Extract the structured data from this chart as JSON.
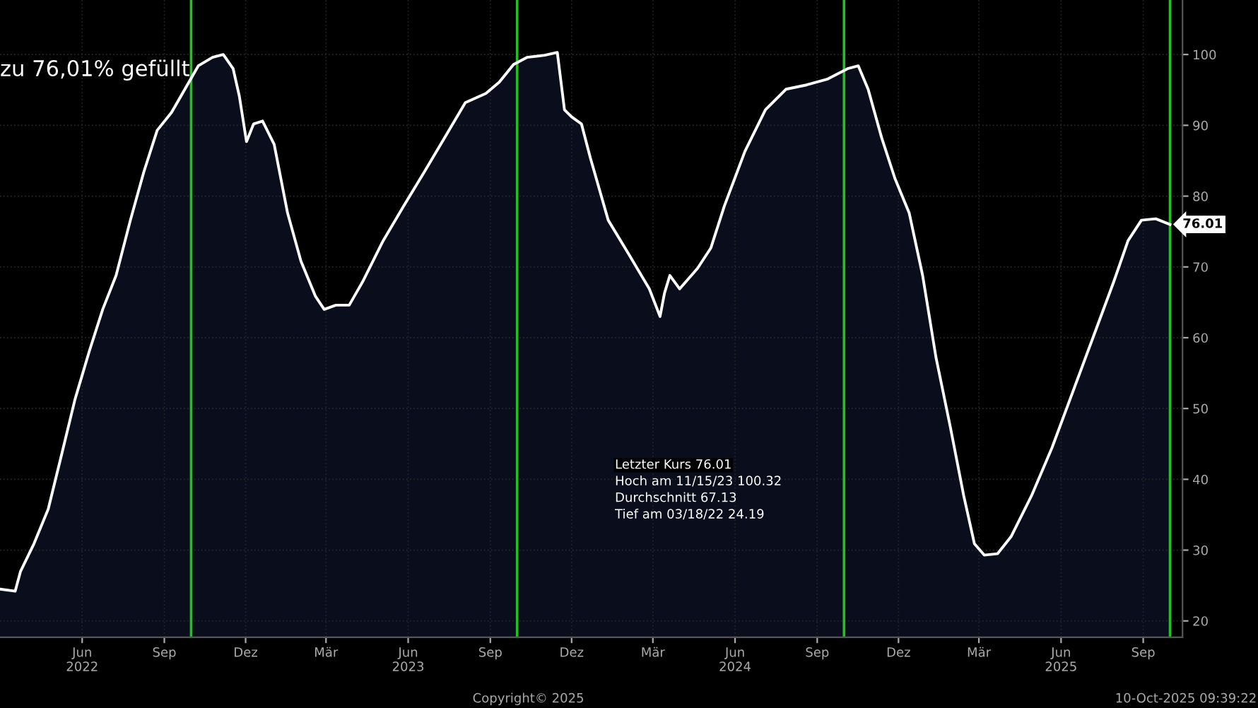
{
  "chart_data": {
    "type": "area",
    "title": "zu 76,01% gefüllt",
    "x": [
      "2022-03-01",
      "2022-03-18",
      "2022-03-24",
      "2022-04-08",
      "2022-04-24",
      "2022-05-09",
      "2022-05-24",
      "2022-06-09",
      "2022-06-24",
      "2022-07-09",
      "2022-07-25",
      "2022-08-09",
      "2022-08-24",
      "2022-09-09",
      "2022-09-24",
      "2022-10-09",
      "2022-10-25",
      "2022-11-06",
      "2022-11-17",
      "2022-11-24",
      "2022-12-02",
      "2022-12-10",
      "2022-12-20",
      "2023-01-02",
      "2023-01-17",
      "2023-02-01",
      "2023-02-17",
      "2023-02-27",
      "2023-03-12",
      "2023-03-27",
      "2023-04-11",
      "2023-05-04",
      "2023-05-27",
      "2023-06-19",
      "2023-07-12",
      "2023-08-04",
      "2023-08-27",
      "2023-09-11",
      "2023-09-27",
      "2023-10-12",
      "2023-11-01",
      "2023-11-15",
      "2023-11-23",
      "2023-12-01",
      "2023-12-12",
      "2023-12-22",
      "2024-01-11",
      "2024-02-03",
      "2024-02-26",
      "2024-03-09",
      "2024-03-14",
      "2024-03-20",
      "2024-03-31",
      "2024-04-20",
      "2024-05-05",
      "2024-05-20",
      "2024-06-12",
      "2024-07-05",
      "2024-07-28",
      "2024-08-20",
      "2024-09-12",
      "2024-10-05",
      "2024-10-17",
      "2024-10-28",
      "2024-11-12",
      "2024-11-27",
      "2024-12-13",
      "2024-12-28",
      "2025-01-12",
      "2025-01-28",
      "2025-02-12",
      "2025-02-24",
      "2025-03-07",
      "2025-03-22",
      "2025-04-06",
      "2025-04-29",
      "2025-05-22",
      "2025-06-14",
      "2025-07-07",
      "2025-07-30",
      "2025-08-15",
      "2025-08-30",
      "2025-09-15",
      "2025-10-01"
    ],
    "series": [
      {
        "color": "#ffffff",
        "values": [
          24.5,
          24.2,
          27.0,
          30.9,
          35.8,
          43.5,
          51.3,
          58.1,
          64.0,
          68.8,
          76.6,
          83.4,
          89.3,
          91.8,
          95.1,
          98.4,
          99.6,
          100.0,
          98.0,
          94.1,
          87.7,
          90.2,
          90.6,
          87.3,
          77.6,
          70.8,
          65.9,
          64.0,
          64.6,
          64.6,
          67.9,
          73.7,
          78.6,
          83.4,
          88.3,
          93.2,
          94.5,
          96.1,
          98.6,
          99.6,
          99.9,
          100.3,
          92.2,
          91.2,
          90.2,
          85.4,
          76.6,
          71.8,
          66.9,
          63.0,
          66.3,
          68.8,
          66.9,
          69.8,
          72.7,
          78.6,
          86.3,
          92.2,
          95.1,
          95.7,
          96.5,
          98.0,
          98.4,
          95.1,
          88.3,
          82.5,
          77.6,
          68.8,
          57.2,
          47.4,
          37.7,
          30.9,
          29.3,
          29.5,
          31.9,
          37.7,
          44.5,
          52.3,
          60.1,
          67.9,
          73.7,
          76.6,
          76.8,
          76.0
        ]
      }
    ],
    "xlim": [
      "2022-03-01",
      "2025-10-15"
    ],
    "xticks": [
      {
        "value": "2022-06-01",
        "label": "Jun\n2022"
      },
      {
        "value": "2022-09-01",
        "label": "Sep"
      },
      {
        "value": "2022-12-01",
        "label": "Dez"
      },
      {
        "value": "2023-03-01",
        "label": "Mär"
      },
      {
        "value": "2023-06-01",
        "label": "Jun\n2023"
      },
      {
        "value": "2023-09-01",
        "label": "Sep"
      },
      {
        "value": "2023-12-01",
        "label": "Dez"
      },
      {
        "value": "2024-03-01",
        "label": "Mär"
      },
      {
        "value": "2024-06-01",
        "label": "Jun\n2024"
      },
      {
        "value": "2024-09-01",
        "label": "Sep"
      },
      {
        "value": "2024-12-01",
        "label": "Dez"
      },
      {
        "value": "2025-03-01",
        "label": "Mär"
      },
      {
        "value": "2025-06-01",
        "label": "Jun\n2025"
      },
      {
        "value": "2025-09-01",
        "label": "Sep"
      }
    ],
    "ylim": [
      17.7,
      107.7
    ],
    "yticks": [
      20,
      30,
      40,
      50,
      60,
      70,
      80,
      90,
      100
    ],
    "grid": true,
    "ref_lines": [
      {
        "axis": "x",
        "value": "2022-10-01",
        "color": "#22c022"
      },
      {
        "axis": "x",
        "value": "2023-10-01",
        "color": "#22c022"
      },
      {
        "axis": "x",
        "value": "2024-10-01",
        "color": "#22c022"
      },
      {
        "axis": "x",
        "value": "2025-10-01",
        "color": "#22c022"
      }
    ],
    "annotations": [
      "Letzter Kurs 76.01",
      "Hoch am 11/15/23 100.32",
      "Durchschnitt 67.13",
      "Tief am 03/18/22 24.19",
      {
        "text": "76.01",
        "x": "2025-10-01",
        "y": 76.01
      },
      "Copyright© 2025",
      "10-Oct-2025 09:39:22"
    ]
  }
}
